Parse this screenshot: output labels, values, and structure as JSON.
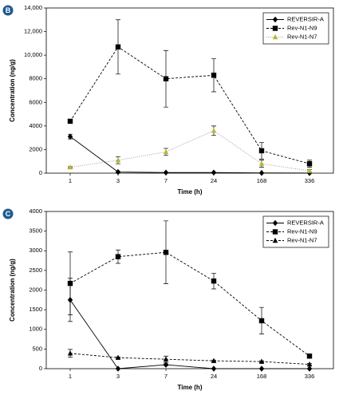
{
  "chart_data": [
    {
      "type": "line",
      "panel": "B",
      "xlabel": "Time (h)",
      "ylabel": "Concentration (ng/g)",
      "categories": [
        "1",
        "3",
        "7",
        "24",
        "168",
        "336"
      ],
      "ylim": [
        0,
        14000
      ],
      "yticks": [
        0,
        2000,
        4000,
        6000,
        8000,
        {
          "value": 10000,
          "label": "10,000"
        },
        {
          "value": 12000,
          "label": "12,000"
        },
        {
          "value": 14000,
          "label": "14,000"
        }
      ],
      "legend": "top-right",
      "series": [
        {
          "name": "REVERSIR-A",
          "color": "#000000",
          "marker": "diamond",
          "dash": "solid",
          "values": [
            3100,
            100,
            50,
            50,
            20,
            10
          ],
          "errors": [
            200,
            30,
            20,
            20,
            10,
            10
          ]
        },
        {
          "name": "Rev-N1-N9",
          "color": "#000000",
          "marker": "square",
          "dash": "dashed",
          "values": [
            4400,
            10700,
            8000,
            8300,
            1900,
            800
          ],
          "errors": [
            100,
            2300,
            2400,
            1400,
            700,
            300
          ]
        },
        {
          "name": "Rev-N1-N7",
          "color": "#9a9a9a",
          "marker_color": "#b8b830",
          "marker": "triangle",
          "dash": "dotted",
          "values": [
            500,
            1100,
            1800,
            3600,
            800,
            200
          ],
          "errors": [
            50,
            300,
            300,
            400,
            300,
            100
          ]
        }
      ]
    },
    {
      "type": "line",
      "panel": "C",
      "xlabel": "Time (h)",
      "ylabel": "Concentration (ng/g)",
      "categories": [
        "1",
        "3",
        "7",
        "24",
        "168",
        "336"
      ],
      "ylim": [
        0,
        4000
      ],
      "yticks": [
        0,
        500,
        1000,
        1500,
        2000,
        2500,
        3000,
        3500,
        4000
      ],
      "legend": "top-right",
      "series": [
        {
          "name": "REVERSIR-A",
          "color": "#000000",
          "marker": "diamond",
          "dash": "solid",
          "values": [
            1750,
            0,
            100,
            0,
            0,
            0
          ],
          "errors": [
            550,
            0,
            20,
            0,
            0,
            0
          ]
        },
        {
          "name": "Rev-N1-N9",
          "color": "#000000",
          "marker": "square",
          "dash": "dashed",
          "values": [
            2170,
            2850,
            2960,
            2230,
            1220,
            320
          ],
          "errors": [
            800,
            170,
            800,
            200,
            340,
            20
          ]
        },
        {
          "name": "Rev-N1-N7",
          "color": "#000000",
          "marker_color": "#000000",
          "marker": "triangle",
          "dash": "dashed",
          "values": [
            390,
            280,
            240,
            200,
            180,
            110
          ],
          "errors": [
            100,
            20,
            80,
            20,
            20,
            20
          ]
        }
      ]
    }
  ]
}
